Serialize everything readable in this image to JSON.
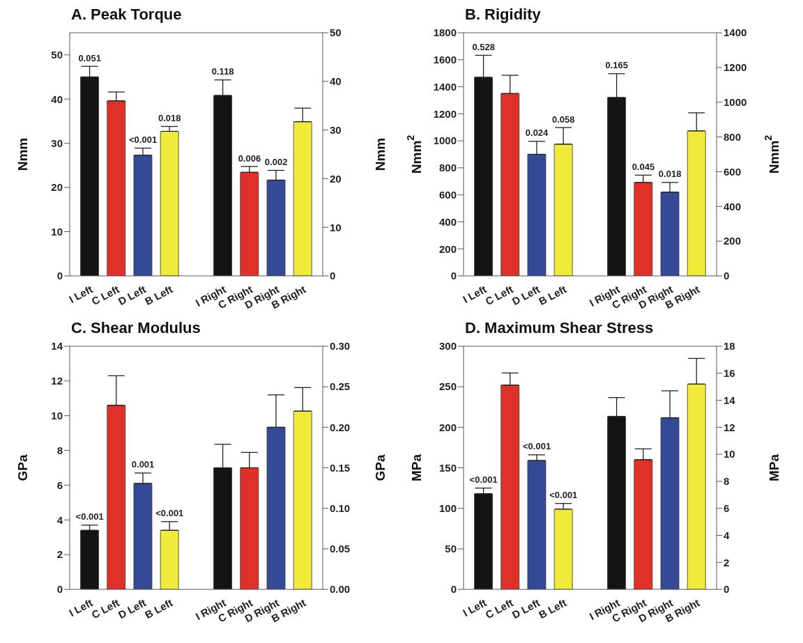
{
  "chart_data": [
    {
      "type": "bar",
      "title": "A. Peak Torque",
      "ylabel": "Nmm",
      "y2label": "Nmm",
      "categories": [
        "I Left",
        "C Left",
        "D Left",
        "B Left",
        "I Right",
        "C Right",
        "D Right",
        "B Right"
      ],
      "ylim": [
        0,
        55
      ],
      "yticks": [
        0,
        10,
        20,
        30,
        40,
        50
      ],
      "y2lim": [
        0,
        50
      ],
      "y2ticks": [
        0,
        10,
        20,
        30,
        40,
        50
      ],
      "series": [
        {
          "colors": [
            "#141414",
            "#e0302a",
            "#344a96",
            "#f0ea3a",
            "#141414",
            "#e0302a",
            "#344a96",
            "#f0ea3a"
          ],
          "values": [
            45,
            39.6,
            27.3,
            32.7,
            null,
            null,
            null,
            null
          ],
          "errors": [
            [
              45,
              47.4
            ],
            [
              39.6,
              41.6
            ],
            [
              27.3,
              28.9
            ],
            [
              32.7,
              33.8
            ],
            null,
            null,
            null,
            null
          ]
        },
        {
          "axis": "y2",
          "colors": [
            "#141414",
            "#e0302a",
            "#344a96",
            "#f0ea3a",
            "#141414",
            "#e0302a",
            "#344a96",
            "#f0ea3a"
          ],
          "values": [
            null,
            null,
            null,
            null,
            37.1,
            21.3,
            19.7,
            31.7
          ],
          "errors": [
            null,
            null,
            null,
            null,
            [
              37.1,
              40.3
            ],
            [
              21.3,
              22.5
            ],
            [
              19.7,
              21.7
            ],
            [
              31.7,
              34.5
            ]
          ]
        }
      ],
      "annotations": [
        {
          "text": "0.051",
          "x": "I Left",
          "y": 45
        },
        {
          "text": "<0.001",
          "x": "D Left",
          "y": 27.3
        },
        {
          "text": "0.018",
          "x": "B Left",
          "y": 32.7
        },
        {
          "text": "0.118",
          "x": "I Right",
          "y": 40.8
        },
        {
          "text": "0.006",
          "x": "C Right",
          "y": 23.4
        },
        {
          "text": "0.002",
          "x": "D Right",
          "y": 21.7
        }
      ]
    },
    {
      "type": "bar",
      "title": "B. Rigidity",
      "ylabel": "Nmm$^{2}$",
      "y2label": "Nmm$^{2}$",
      "categories": [
        "I Left",
        "C Left",
        "D Left",
        "B Left",
        "I Right",
        "C Right",
        "D Right",
        "B Right"
      ],
      "ylim": [
        0,
        1800
      ],
      "yticks": [
        0,
        200,
        400,
        600,
        800,
        1000,
        1200,
        1400,
        1600,
        1800
      ],
      "y2lim": [
        0,
        1400
      ],
      "y2ticks": [
        0,
        200,
        400,
        600,
        800,
        1000,
        1200,
        1400
      ],
      "series": [
        {
          "colors": [
            "#141414",
            "#e0302a",
            "#344a96",
            "#f0ea3a",
            "#141414",
            "#e0302a",
            "#344a96",
            "#f0ea3a"
          ],
          "values": [
            1470,
            1350,
            900,
            975,
            null,
            null,
            null,
            null
          ],
          "errors": [
            [
              1470,
              1633
            ],
            [
              1350,
              1485
            ],
            [
              900,
              996
            ],
            [
              975,
              1098
            ],
            null,
            null,
            null,
            null
          ]
        },
        {
          "axis": "y2",
          "colors": [
            "#141414",
            "#e0302a",
            "#344a96",
            "#f0ea3a",
            "#141414",
            "#e0302a",
            "#344a96",
            "#f0ea3a"
          ],
          "values": [
            null,
            null,
            null,
            null,
            1027,
            538,
            482,
            835
          ],
          "errors": [
            null,
            null,
            null,
            null,
            [
              1027,
              1164
            ],
            [
              538,
              580
            ],
            [
              482,
              538
            ],
            [
              835,
              939
            ]
          ]
        }
      ],
      "annotations": [
        {
          "text": "0.528",
          "x": "I Left",
          "y": 1470
        },
        {
          "text": "0.024",
          "x": "D Left",
          "y": 900
        },
        {
          "text": "0.058",
          "x": "B Left",
          "y": 975
        },
        {
          "text": "0.165",
          "x": "I Right",
          "y": 1320
        },
        {
          "text": "0.045",
          "x": "C Right",
          "y": 692
        },
        {
          "text": "0.018",
          "x": "D Right",
          "y": 620
        }
      ]
    },
    {
      "type": "bar",
      "title": "C. Shear Modulus",
      "ylabel": "GPa",
      "y2label": "GPa",
      "categories": [
        "I Left",
        "C Left",
        "D Left",
        "B Left",
        "I Right",
        "C Right",
        "D Right",
        "B Right"
      ],
      "ylim": [
        0,
        14
      ],
      "yticks": [
        0,
        2,
        4,
        6,
        8,
        10,
        12,
        14
      ],
      "y2lim": [
        0,
        0.3
      ],
      "y2ticks": [
        {
          "value": 0,
          "label": "0.00"
        },
        {
          "value": 0.05,
          "label": "0.05"
        },
        {
          "value": 0.1,
          "label": "0.10"
        },
        {
          "value": 0.15,
          "label": "0.15"
        },
        {
          "value": 0.2,
          "label": "0.20"
        },
        {
          "value": 0.25,
          "label": "0.25"
        },
        {
          "value": 0.3,
          "label": "0.30"
        }
      ],
      "series": [
        {
          "colors": [
            "#141414",
            "#e0302a",
            "#344a96",
            "#f0ea3a",
            "#141414",
            "#e0302a",
            "#344a96",
            "#f0ea3a"
          ],
          "values": [
            3.4,
            10.6,
            6.1,
            3.4,
            null,
            null,
            null,
            null
          ],
          "errors": [
            [
              3.4,
              3.7
            ],
            [
              10.6,
              12.3
            ],
            [
              6.1,
              6.7
            ],
            [
              3.4,
              3.9
            ],
            null,
            null,
            null,
            null
          ]
        },
        {
          "axis": "y2",
          "colors": [
            "#141414",
            "#e0302a",
            "#344a96",
            "#f0ea3a",
            "#141414",
            "#e0302a",
            "#344a96",
            "#f0ea3a"
          ],
          "values": [
            null,
            null,
            null,
            null,
            0.15,
            0.15,
            0.2,
            0.22
          ],
          "errors": [
            null,
            null,
            null,
            null,
            [
              0.15,
              0.179
            ],
            [
              0.15,
              0.169
            ],
            [
              0.2,
              0.24
            ],
            [
              0.22,
              0.249
            ]
          ]
        }
      ],
      "annotations": [
        {
          "text": "<0.001",
          "x": "I Left",
          "y": 3.4
        },
        {
          "text": "0.001",
          "x": "D Left",
          "y": 6.1
        },
        {
          "text": "<0.001",
          "x": "B Left",
          "y": 3.4
        }
      ]
    },
    {
      "type": "bar",
      "title": "D. Maximum Shear Stress",
      "ylabel": "MPa",
      "y2label": "MPa",
      "categories": [
        "I Left",
        "C Left",
        "D Left",
        "B Left",
        "I Right",
        "C Right",
        "D Right",
        "B Right"
      ],
      "ylim": [
        0,
        300
      ],
      "yticks": [
        0,
        50,
        100,
        150,
        200,
        250,
        300
      ],
      "y2lim": [
        0,
        18
      ],
      "y2ticks": [
        0,
        2,
        4,
        6,
        8,
        10,
        12,
        14,
        16,
        18
      ],
      "series": [
        {
          "colors": [
            "#141414",
            "#e0302a",
            "#344a96",
            "#f0ea3a",
            "#141414",
            "#e0302a",
            "#344a96",
            "#f0ea3a"
          ],
          "values": [
            118,
            252,
            159,
            99,
            null,
            null,
            null,
            null
          ],
          "errors": [
            [
              118,
              125
            ],
            [
              252,
              267
            ],
            [
              159,
              166
            ],
            [
              99,
              106
            ],
            null,
            null,
            null,
            null
          ]
        },
        {
          "axis": "y2",
          "colors": [
            "#141414",
            "#e0302a",
            "#344a96",
            "#f0ea3a",
            "#141414",
            "#e0302a",
            "#344a96",
            "#f0ea3a"
          ],
          "values": [
            null,
            null,
            null,
            null,
            12.8,
            9.6,
            12.7,
            15.2
          ],
          "errors": [
            null,
            null,
            null,
            null,
            [
              12.8,
              14.2
            ],
            [
              9.6,
              10.4
            ],
            [
              12.7,
              14.7
            ],
            [
              15.2,
              17.1
            ]
          ]
        }
      ],
      "annotations": [
        {
          "text": "<0.001",
          "x": "I Left",
          "y": 118
        },
        {
          "text": "<0.001",
          "x": "D Left",
          "y": 159
        },
        {
          "text": "<0.001",
          "x": "B Left",
          "y": 99
        }
      ]
    }
  ]
}
